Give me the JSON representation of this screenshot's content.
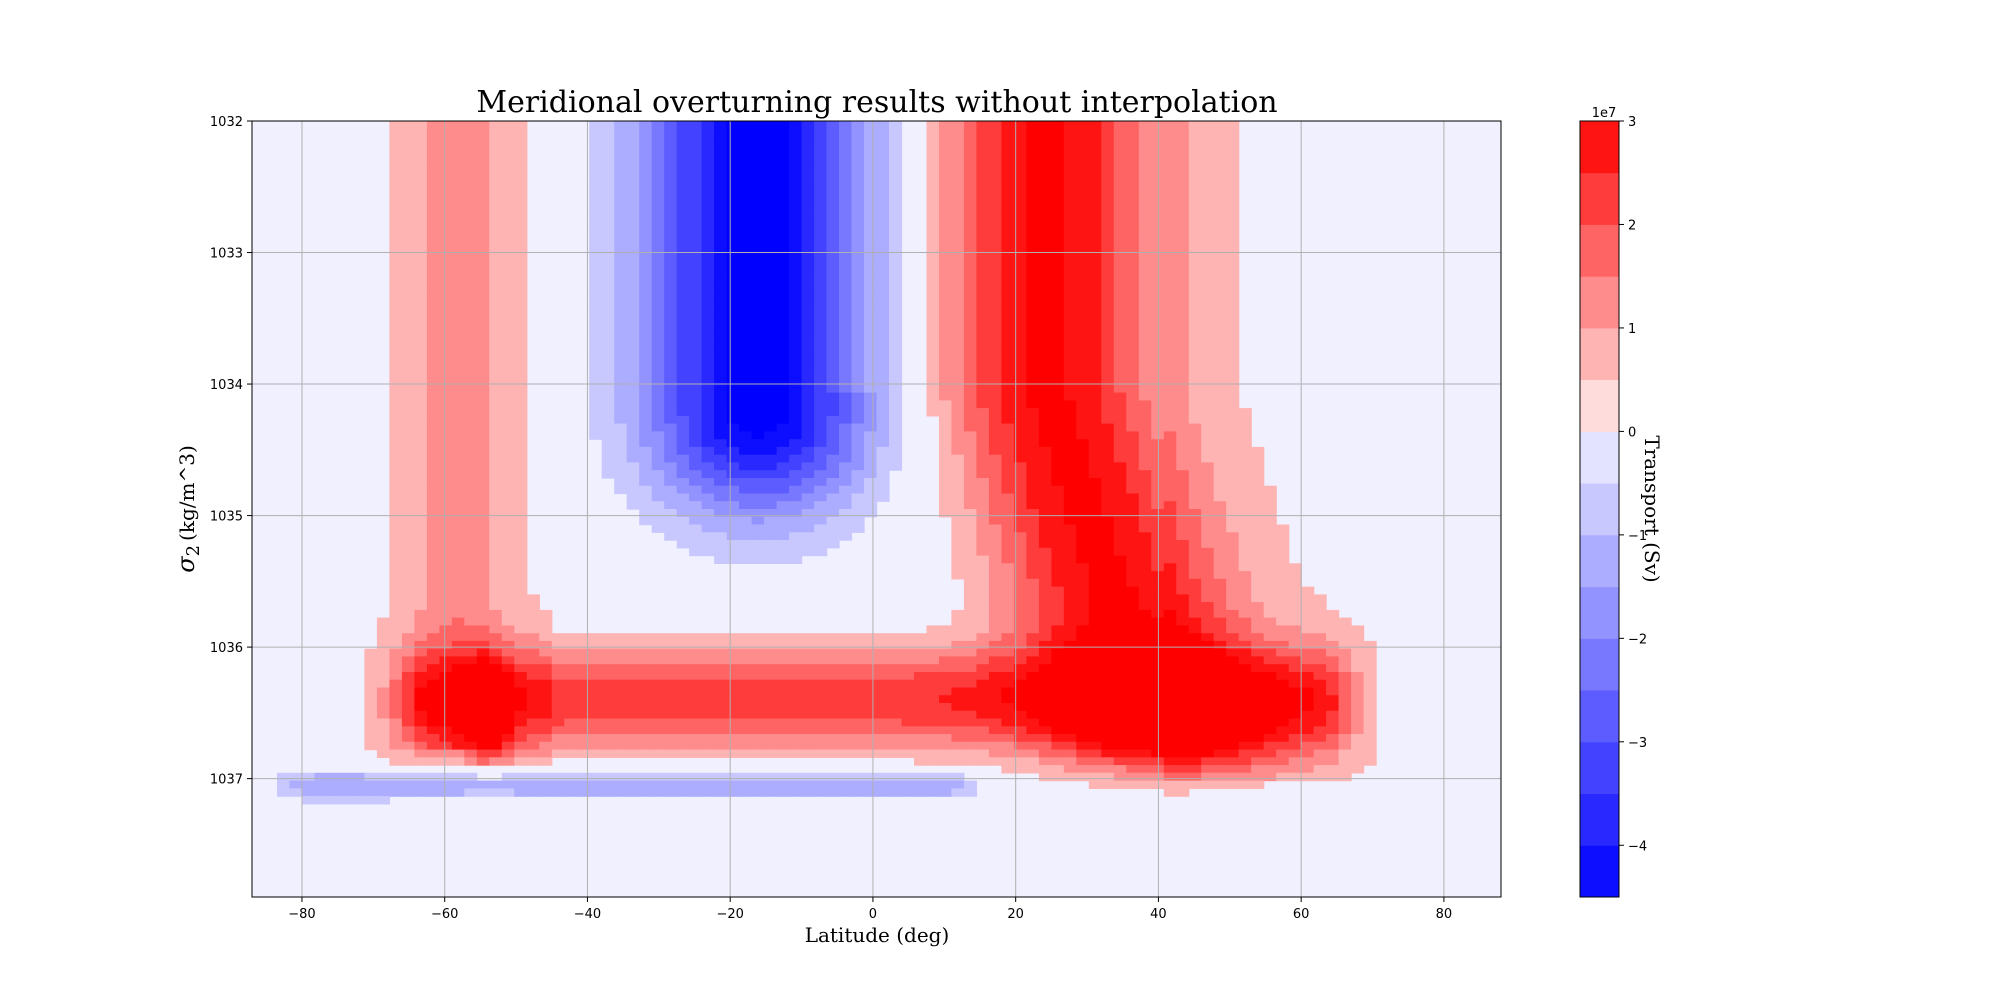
{
  "chart_data": {
    "type": "heatmap",
    "title": "Meridional overturning results without interpolation",
    "xlabel": "Latitude (deg)",
    "ylabel_symbol": "σ",
    "ylabel_subscript": "2",
    "ylabel_units": "(kg/m^3)",
    "xlim": [
      -87,
      88
    ],
    "ylim": [
      1037.9,
      1032.0
    ],
    "y_inverted": true,
    "x_ticks": [
      -80,
      -60,
      -40,
      -20,
      0,
      20,
      40,
      60,
      80
    ],
    "x_tick_labels": [
      "−80",
      "−60",
      "−40",
      "−20",
      "0",
      "20",
      "40",
      "60",
      "80"
    ],
    "y_ticks": [
      1032,
      1033,
      1034,
      1035,
      1036,
      1037
    ],
    "y_tick_labels": [
      "1032",
      "1033",
      "1034",
      "1035",
      "1036",
      "1037"
    ],
    "grid": true,
    "colormap": "bwr",
    "colorbar": {
      "label": "Transport (Sv)",
      "multiplier": "1e7",
      "range": [
        -4.5,
        3
      ],
      "ticks": [
        3,
        2,
        1,
        0,
        -1,
        -2,
        -3,
        -4
      ],
      "tick_labels": [
        "3",
        "2",
        "1",
        "0",
        "−1",
        "−2",
        "−3",
        "−4"
      ],
      "level_step": 0.5
    },
    "features": [
      {
        "name": "blue cell",
        "lat_range": [
          -42,
          0
        ],
        "sigma_range": [
          1032,
          1035.6
        ],
        "peak": -4.5
      },
      {
        "name": "red cell",
        "lat_range": [
          2,
          42
        ],
        "sigma_range": [
          1032,
          1036.9
        ],
        "peak": 2.9
      },
      {
        "name": "deep red band",
        "lat_range": [
          -62,
          62
        ],
        "sigma_range": [
          1035.9,
          1036.9
        ],
        "peak": 2.5
      },
      {
        "name": "bottom blue band",
        "lat_range": [
          -78,
          10
        ],
        "sigma_range": [
          1036.9,
          1037.2
        ],
        "peak": -1.3
      }
    ]
  },
  "colors": {
    "negative_max": "#0000ff",
    "zero": "#f0f0ff",
    "positive_max": "#ff0000",
    "grid": "#b0b0b0"
  }
}
